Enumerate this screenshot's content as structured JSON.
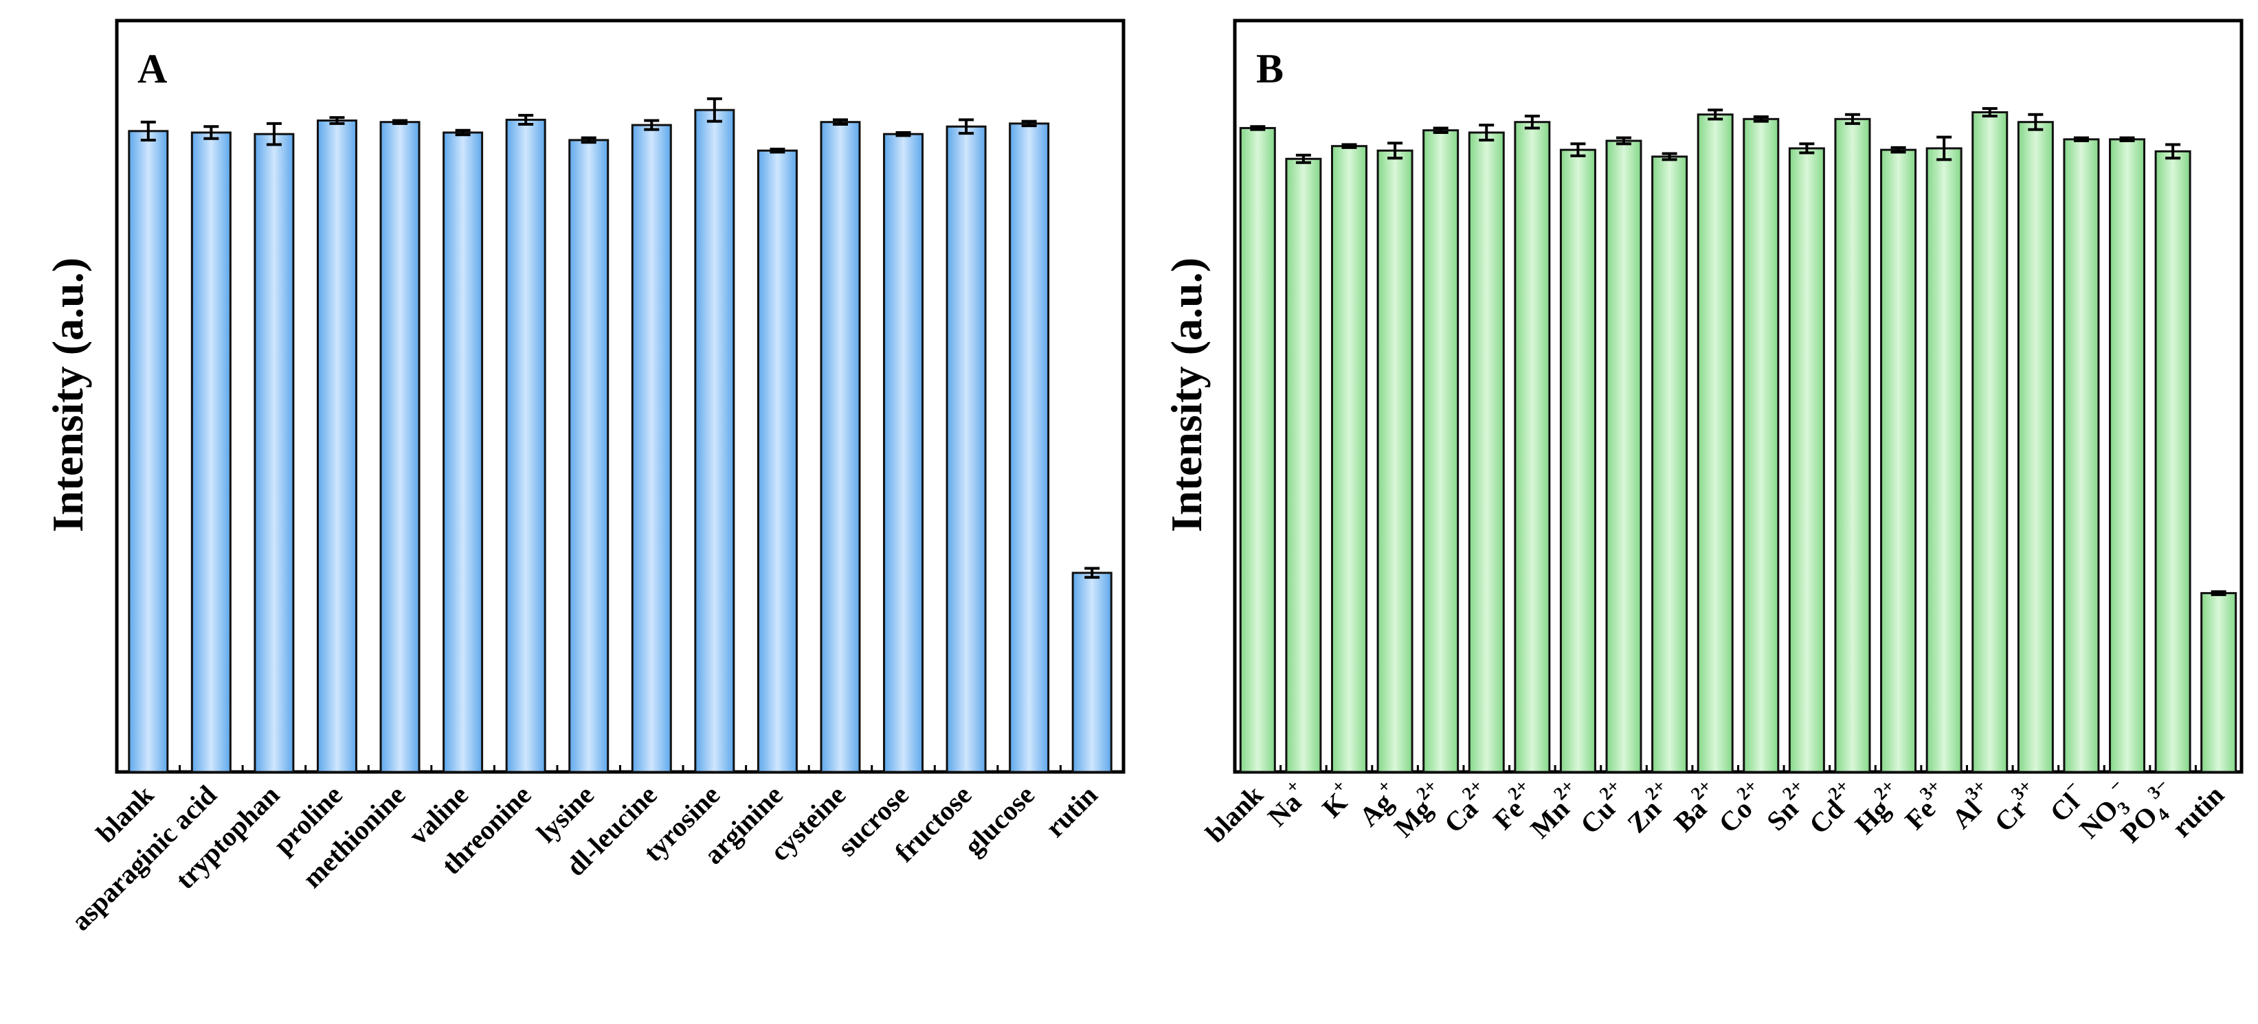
{
  "colors": {
    "panel_a_bar": "#8cc3f5",
    "panel_b_bar": "#a8e6a8"
  },
  "chart_data": [
    {
      "type": "bar",
      "panel_label": "A",
      "title": "",
      "xlabel": "",
      "ylabel": "Intensity (a.u.)",
      "ylim": [
        0,
        100
      ],
      "categories": [
        "blank",
        "asparaginic acid",
        "tryptophan",
        "proline",
        "methionine",
        "valine",
        "threonine",
        "lysine",
        "dl-leucine",
        "tyrosine",
        "arginine",
        "cysteine",
        "sucrose",
        "fructose",
        "glucose",
        "rutin"
      ],
      "values": [
        85.3,
        85.1,
        84.9,
        86.7,
        86.5,
        85.1,
        86.8,
        84.1,
        86.1,
        88.1,
        82.7,
        86.5,
        84.9,
        85.9,
        86.3,
        26.5
      ],
      "errors": [
        1.2,
        0.8,
        1.4,
        0.4,
        0.2,
        0.3,
        0.6,
        0.3,
        0.6,
        1.5,
        0.2,
        0.3,
        0.2,
        0.9,
        0.3,
        0.6
      ]
    },
    {
      "type": "bar",
      "panel_label": "B",
      "title": "",
      "xlabel": "",
      "ylabel": "Intensity (a.u.)",
      "ylim": [
        0,
        100
      ],
      "categories": [
        "blank",
        "Na",
        "K",
        "Ag",
        "Mg",
        "Ca",
        "Fe",
        "Mn",
        "Cu",
        "Zn",
        "Ba",
        "Co",
        "Sn",
        "Cd",
        "Hg",
        "Fe",
        "Al",
        "Cr",
        "Cl",
        "NO",
        "PO",
        "rutin"
      ],
      "category_superscripts": [
        "",
        "+",
        "+",
        "+",
        "2+",
        "2+",
        "2+",
        "2+",
        "2+",
        "2+",
        "2+",
        "2+",
        "2+",
        "2+",
        "2+",
        "3+",
        "3+",
        "3+",
        "−",
        "−",
        "3−",
        ""
      ],
      "category_subscripts": [
        "",
        "",
        "",
        "",
        "",
        "",
        "",
        "",
        "",
        "",
        "",
        "",
        "",
        "",
        "",
        "",
        "",
        "",
        "",
        "3",
        "4",
        ""
      ],
      "values": [
        85.7,
        81.6,
        83.3,
        82.7,
        85.4,
        85.1,
        86.5,
        82.8,
        84.0,
        81.9,
        87.5,
        86.9,
        83.0,
        86.9,
        82.8,
        83.0,
        87.8,
        86.5,
        84.2,
        84.2,
        82.6,
        23.8
      ],
      "errors": [
        0.2,
        0.5,
        0.2,
        1.0,
        0.3,
        1.0,
        0.8,
        0.8,
        0.4,
        0.4,
        0.6,
        0.3,
        0.6,
        0.6,
        0.3,
        1.5,
        0.5,
        1.0,
        0.2,
        0.2,
        0.9,
        0.2
      ]
    }
  ]
}
